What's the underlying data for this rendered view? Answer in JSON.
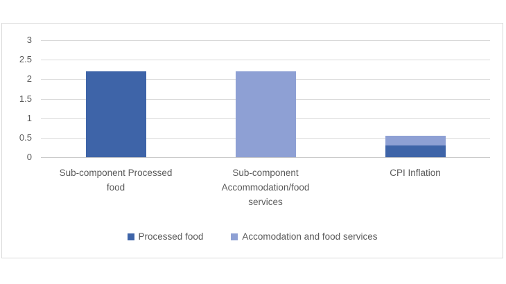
{
  "chart_data": {
    "type": "bar",
    "stacked": true,
    "title": "",
    "xlabel": "",
    "ylabel": "",
    "categories": [
      "Sub-component Processed\nfood",
      "Sub-component\nAccommodation/food\nservices",
      "CPI Inflation"
    ],
    "series": [
      {
        "name": "Processed food",
        "color": "#3E64A8",
        "values": [
          2.2,
          0,
          0.3
        ]
      },
      {
        "name": "Accomodation and food services",
        "color": "#8EA0D4",
        "values": [
          0,
          2.2,
          0.25
        ]
      }
    ],
    "ylim": [
      0,
      3
    ],
    "yticks": [
      {
        "v": 3,
        "label": "3"
      },
      {
        "v": 2.5,
        "label": "2.5"
      },
      {
        "v": 2,
        "label": "2"
      },
      {
        "v": 1.5,
        "label": "1.5"
      },
      {
        "v": 1,
        "label": "1"
      },
      {
        "v": 0.5,
        "label": "0.5"
      },
      {
        "v": 0,
        "label": "0"
      }
    ],
    "grid": true,
    "legend_position": "bottom"
  },
  "colors": {
    "background": "#FFFFFF",
    "chart_border": "#D9D9D9",
    "gridline": "#D9D9D9",
    "axis_line": "#C9C9C9",
    "text": "#595959"
  }
}
